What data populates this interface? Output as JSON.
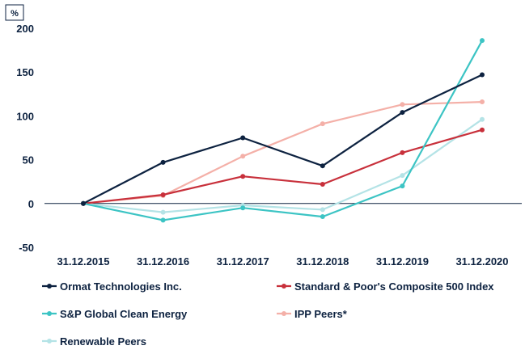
{
  "chart_data": {
    "type": "line",
    "unit_label": "%",
    "categories": [
      "31.12.2015",
      "31.12.2016",
      "31.12.2017",
      "31.12.2018",
      "31.12.2019",
      "31.12.2020"
    ],
    "ylim": [
      -50,
      200
    ],
    "yticks": [
      200,
      150,
      100,
      50,
      0,
      -50
    ],
    "legend_position": "bottom",
    "series": [
      {
        "name": "Ormat Technologies Inc.",
        "color": "#0d2240",
        "values": [
          0,
          47,
          75,
          43,
          104,
          147
        ]
      },
      {
        "name": "Standard & Poor's Composite 500 Index",
        "color": "#c8303b",
        "values": [
          0,
          10,
          31,
          22,
          58,
          84
        ]
      },
      {
        "name": "S&P Global Clean Energy",
        "color": "#3cc4c4",
        "values": [
          0,
          -19,
          -5,
          -15,
          20,
          186
        ]
      },
      {
        "name": "IPP Peers*",
        "color": "#f4b0a8",
        "values": [
          0,
          9,
          54,
          91,
          113,
          116
        ]
      },
      {
        "name": "Renewable Peers",
        "color": "#b4e3e6",
        "values": [
          0,
          -10,
          -2,
          -7,
          32,
          96
        ]
      }
    ]
  }
}
